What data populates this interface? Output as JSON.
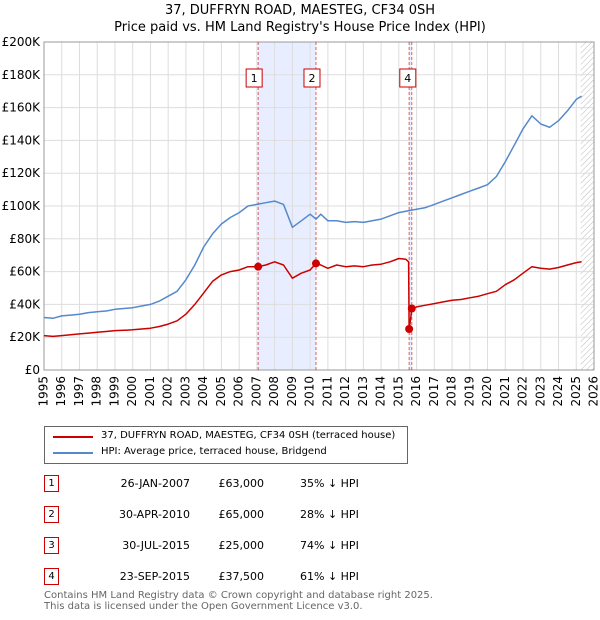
{
  "chart_data": {
    "type": "line",
    "title": "37, DUFFRYN ROAD, MAESTEG, CF34 0SH",
    "subtitle": "Price paid vs. HM Land Registry's House Price Index (HPI)",
    "ylim": [
      0,
      200000
    ],
    "xlim": [
      1995,
      2026
    ],
    "y_ticks": [
      0,
      20000,
      40000,
      60000,
      80000,
      100000,
      120000,
      140000,
      160000,
      180000,
      200000
    ],
    "y_tick_labels": [
      "£0",
      "£20K",
      "£40K",
      "£60K",
      "£80K",
      "£100K",
      "£120K",
      "£140K",
      "£160K",
      "£180K",
      "£200K"
    ],
    "x_ticks": [
      1995,
      1996,
      1997,
      1998,
      1999,
      2000,
      2001,
      2002,
      2003,
      2004,
      2005,
      2006,
      2007,
      2008,
      2009,
      2010,
      2011,
      2012,
      2013,
      2014,
      2015,
      2016,
      2017,
      2018,
      2019,
      2020,
      2021,
      2022,
      2023,
      2024,
      2025,
      2026
    ],
    "grid": true,
    "future_hatch_from": 2025.25,
    "series": [
      {
        "name": "37, DUFFRYN ROAD, MAESTEG, CF34 0SH (terraced house)",
        "color": "#cc0000",
        "points": [
          [
            1995.0,
            21000
          ],
          [
            1995.5,
            20500
          ],
          [
            1996.0,
            21000
          ],
          [
            1996.5,
            21500
          ],
          [
            1997.0,
            22000
          ],
          [
            1997.5,
            22500
          ],
          [
            1998.0,
            23000
          ],
          [
            1998.5,
            23500
          ],
          [
            1999.0,
            24000
          ],
          [
            1999.5,
            24200
          ],
          [
            2000.0,
            24500
          ],
          [
            2000.5,
            25000
          ],
          [
            2001.0,
            25500
          ],
          [
            2001.5,
            26500
          ],
          [
            2002.0,
            28000
          ],
          [
            2002.5,
            30000
          ],
          [
            2003.0,
            34000
          ],
          [
            2003.5,
            40000
          ],
          [
            2004.0,
            47000
          ],
          [
            2004.5,
            54000
          ],
          [
            2005.0,
            58000
          ],
          [
            2005.5,
            60000
          ],
          [
            2006.0,
            61000
          ],
          [
            2006.5,
            63000
          ],
          [
            2007.07,
            63000
          ],
          [
            2007.5,
            64000
          ],
          [
            2008.0,
            66000
          ],
          [
            2008.5,
            64000
          ],
          [
            2009.0,
            56000
          ],
          [
            2009.5,
            59000
          ],
          [
            2010.0,
            61000
          ],
          [
            2010.33,
            65000
          ],
          [
            2010.6,
            64000
          ],
          [
            2011.0,
            62000
          ],
          [
            2011.5,
            64000
          ],
          [
            2012.0,
            63000
          ],
          [
            2012.5,
            63500
          ],
          [
            2013.0,
            63000
          ],
          [
            2013.5,
            64000
          ],
          [
            2014.0,
            64500
          ],
          [
            2014.5,
            66000
          ],
          [
            2015.0,
            68000
          ],
          [
            2015.4,
            67500
          ],
          [
            2015.55,
            66000
          ],
          [
            2015.58,
            25000
          ],
          [
            2015.65,
            30000
          ],
          [
            2015.73,
            37500
          ],
          [
            2016.0,
            38500
          ],
          [
            2016.5,
            39500
          ],
          [
            2017.0,
            40500
          ],
          [
            2017.5,
            41500
          ],
          [
            2018.0,
            42500
          ],
          [
            2018.5,
            43000
          ],
          [
            2019.0,
            44000
          ],
          [
            2019.5,
            45000
          ],
          [
            2020.0,
            46500
          ],
          [
            2020.5,
            48000
          ],
          [
            2021.0,
            52000
          ],
          [
            2021.5,
            55000
          ],
          [
            2022.0,
            59000
          ],
          [
            2022.5,
            63000
          ],
          [
            2023.0,
            62000
          ],
          [
            2023.5,
            61500
          ],
          [
            2024.0,
            62500
          ],
          [
            2024.5,
            64000
          ],
          [
            2025.0,
            65500
          ],
          [
            2025.3,
            66000
          ]
        ]
      },
      {
        "name": "HPI: Average price, terraced house, Bridgend",
        "color": "#5588cc",
        "points": [
          [
            1995.0,
            32000
          ],
          [
            1995.5,
            31500
          ],
          [
            1996.0,
            33000
          ],
          [
            1996.5,
            33500
          ],
          [
            1997.0,
            34000
          ],
          [
            1997.5,
            35000
          ],
          [
            1998.0,
            35500
          ],
          [
            1998.5,
            36000
          ],
          [
            1999.0,
            37000
          ],
          [
            1999.5,
            37500
          ],
          [
            2000.0,
            38000
          ],
          [
            2000.5,
            39000
          ],
          [
            2001.0,
            40000
          ],
          [
            2001.5,
            42000
          ],
          [
            2002.0,
            45000
          ],
          [
            2002.5,
            48000
          ],
          [
            2003.0,
            55000
          ],
          [
            2003.5,
            64000
          ],
          [
            2004.0,
            75000
          ],
          [
            2004.5,
            83000
          ],
          [
            2005.0,
            89000
          ],
          [
            2005.5,
            93000
          ],
          [
            2006.0,
            96000
          ],
          [
            2006.5,
            100000
          ],
          [
            2007.0,
            101000
          ],
          [
            2007.5,
            102000
          ],
          [
            2008.0,
            103000
          ],
          [
            2008.5,
            101000
          ],
          [
            2009.0,
            87000
          ],
          [
            2009.5,
            91000
          ],
          [
            2010.0,
            95000
          ],
          [
            2010.33,
            92000
          ],
          [
            2010.6,
            95000
          ],
          [
            2011.0,
            91000
          ],
          [
            2011.5,
            91000
          ],
          [
            2012.0,
            90000
          ],
          [
            2012.5,
            90500
          ],
          [
            2013.0,
            90000
          ],
          [
            2013.5,
            91000
          ],
          [
            2014.0,
            92000
          ],
          [
            2014.5,
            94000
          ],
          [
            2015.0,
            96000
          ],
          [
            2015.5,
            97000
          ],
          [
            2016.0,
            98000
          ],
          [
            2016.5,
            99000
          ],
          [
            2017.0,
            101000
          ],
          [
            2017.5,
            103000
          ],
          [
            2018.0,
            105000
          ],
          [
            2018.5,
            107000
          ],
          [
            2019.0,
            109000
          ],
          [
            2019.5,
            111000
          ],
          [
            2020.0,
            113000
          ],
          [
            2020.5,
            118000
          ],
          [
            2021.0,
            127000
          ],
          [
            2021.5,
            137000
          ],
          [
            2022.0,
            147000
          ],
          [
            2022.5,
            155000
          ],
          [
            2023.0,
            150000
          ],
          [
            2023.5,
            148000
          ],
          [
            2024.0,
            152000
          ],
          [
            2024.5,
            158000
          ],
          [
            2025.0,
            165000
          ],
          [
            2025.3,
            167000
          ]
        ]
      }
    ],
    "transactions": [
      {
        "num": "1",
        "date": "26-JAN-2007",
        "price": "£63,000",
        "hpi": "35% ↓ HPI",
        "x": 2007.07,
        "y": 63000
      },
      {
        "num": "2",
        "date": "30-APR-2010",
        "price": "£65,000",
        "hpi": "28% ↓ HPI",
        "x": 2010.33,
        "y": 65000
      },
      {
        "num": "3",
        "date": "30-JUL-2015",
        "price": "£25,000",
        "hpi": "74% ↓ HPI",
        "x": 2015.58,
        "y": 25000
      },
      {
        "num": "4",
        "date": "23-SEP-2015",
        "price": "£37,500",
        "hpi": "61% ↓ HPI",
        "x": 2015.73,
        "y": 37500
      }
    ],
    "marker_labels": [
      {
        "num": "1",
        "x": 2007.07
      },
      {
        "num": "2",
        "x": 2010.33
      },
      {
        "num": "4",
        "x": 2015.73
      }
    ]
  },
  "legend": {
    "property_label": "37, DUFFRYN ROAD, MAESTEG, CF34 0SH (terraced house)",
    "hpi_label": "HPI: Average price, terraced house, Bridgend"
  },
  "colors": {
    "property": "#cc0000",
    "hpi": "#5588cc",
    "highlight": "#e8eeff",
    "grid": "#dddddd"
  },
  "footer": {
    "line1": "Contains HM Land Registry data © Crown copyright and database right 2025.",
    "line2": "This data is licensed under the Open Government Licence v3.0."
  }
}
